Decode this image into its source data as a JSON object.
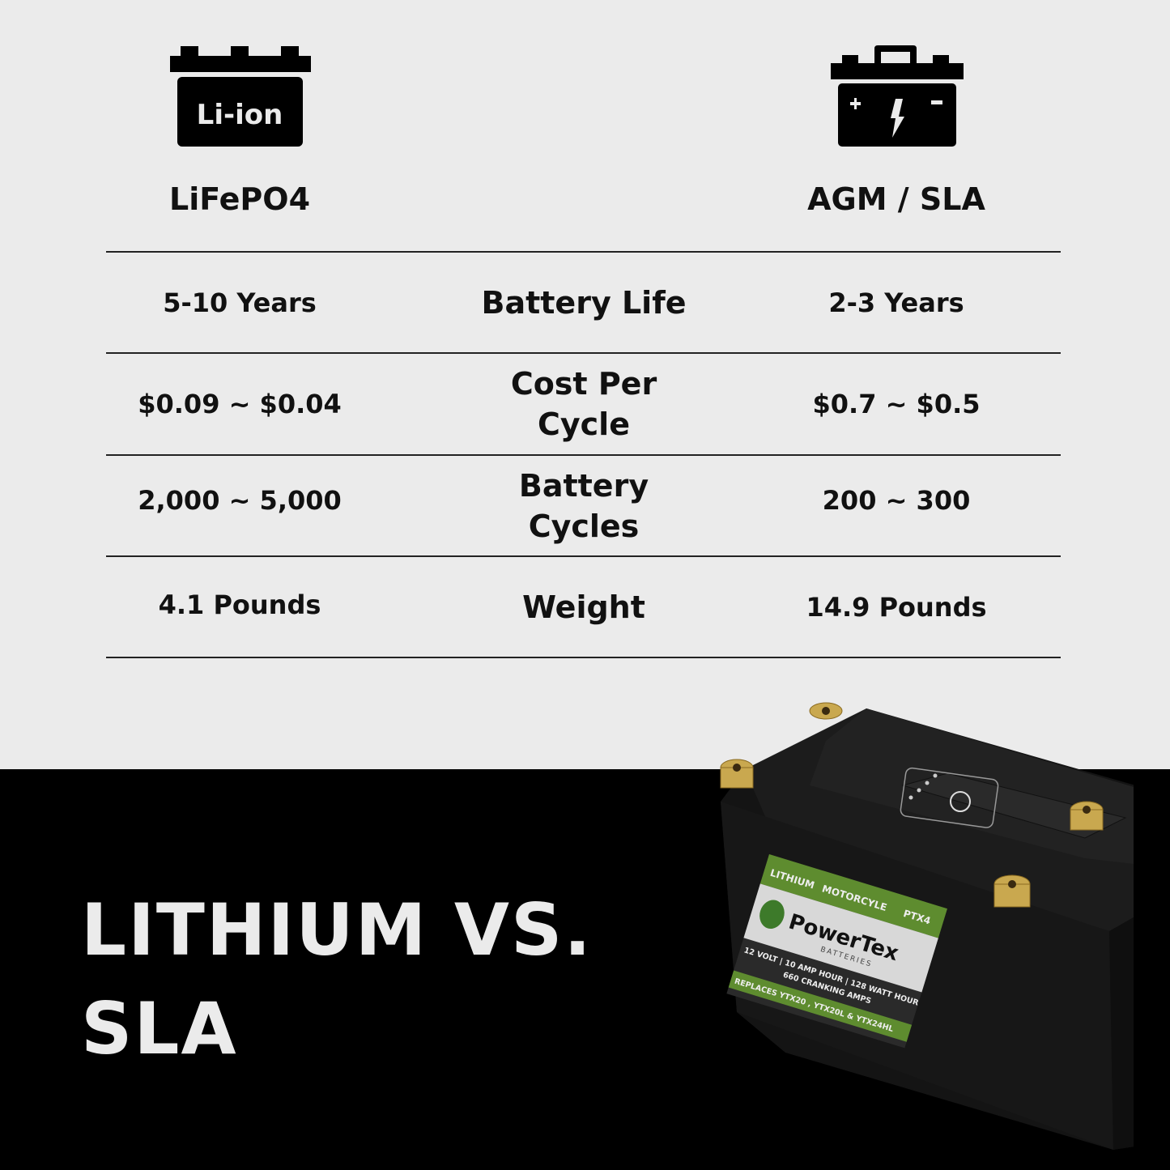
{
  "columns": {
    "left": {
      "icon": "li-ion-battery-icon",
      "icon_text": "Li-ion",
      "title": "LiFePO4"
    },
    "right": {
      "icon": "agm-battery-icon",
      "title": "AGM / SLA"
    }
  },
  "rows": [
    {
      "label": "Battery Life",
      "lifepo4": "5-10 Years",
      "agm": "2-3 Years"
    },
    {
      "label": "Cost Per Cycle",
      "lifepo4": "$0.09 ~ $0.04",
      "agm": "$0.7 ~ $0.5"
    },
    {
      "label": "Battery Cycles",
      "lifepo4": "2,000 ~ 5,000",
      "agm": "200 ~ 300"
    },
    {
      "label": "Weight",
      "lifepo4": "4.1 Pounds",
      "agm": "14.9 Pounds"
    }
  ],
  "headline": {
    "line1": "LITHIUM VS.",
    "line2": "SLA"
  },
  "product_label": {
    "tags": [
      "LITHIUM",
      "MOTORCYLE",
      "PTX4"
    ],
    "brand": "PowerTex",
    "brand_sub": "BATTERIES",
    "specs": "12 VOLT | 10 AMP HOUR | 128 WATT HOUR",
    "specs2": "660 CRANKING AMPS",
    "replaces": "REPLACES YTX20 , YTX20L & YTX24HL"
  },
  "colors": {
    "background": "#ebebeb",
    "dark": "#000000",
    "label_green": "#5e8c2f"
  }
}
